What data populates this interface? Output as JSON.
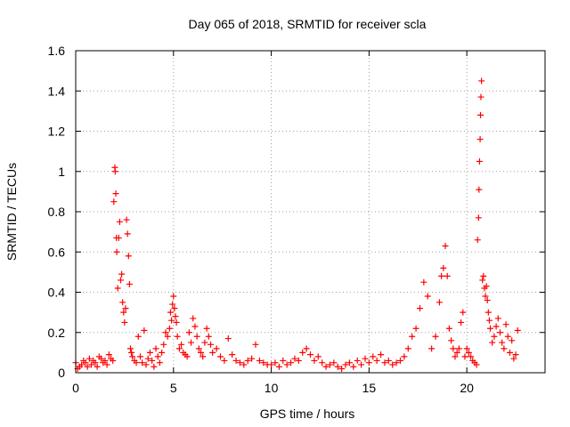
{
  "chart_data": {
    "type": "scatter",
    "title": "Day 065 of 2018, SRMTID for receiver scla",
    "xlabel": "GPS time / hours",
    "ylabel": "SRMTID / TECUs",
    "xlim": [
      0,
      24
    ],
    "ylim": [
      0,
      1.6
    ],
    "xticks": [
      0,
      5,
      10,
      15,
      20
    ],
    "xtick_labels": [
      "0",
      "5",
      "10",
      "15",
      "20"
    ],
    "yticks": [
      0,
      0.2,
      0.4,
      0.6,
      0.8,
      1,
      1.2,
      1.4,
      1.6
    ],
    "ytick_labels": [
      "0",
      "0.2",
      "0.4",
      "0.6",
      "0.8",
      "1",
      "1.2",
      "1.4",
      "1.6"
    ],
    "grid": true,
    "marker": "+",
    "color": "#ff0000",
    "series": [
      {
        "name": "SRMTID",
        "x": [
          0.0,
          0.1,
          0.2,
          0.3,
          0.4,
          0.5,
          0.6,
          0.7,
          0.8,
          0.9,
          1.0,
          1.1,
          1.2,
          1.3,
          1.4,
          1.5,
          1.6,
          1.7,
          1.8,
          1.9,
          1.95,
          2.0,
          2.02,
          2.05,
          2.08,
          2.1,
          2.15,
          2.2,
          2.25,
          2.3,
          2.35,
          2.4,
          2.45,
          2.5,
          2.55,
          2.6,
          2.65,
          2.7,
          2.75,
          2.8,
          2.85,
          2.9,
          3.0,
          3.1,
          3.2,
          3.3,
          3.4,
          3.5,
          3.6,
          3.7,
          3.8,
          3.9,
          4.0,
          4.1,
          4.2,
          4.3,
          4.4,
          4.5,
          4.6,
          4.7,
          4.8,
          4.85,
          4.9,
          4.95,
          5.0,
          5.05,
          5.1,
          5.15,
          5.2,
          5.3,
          5.4,
          5.5,
          5.6,
          5.7,
          5.8,
          5.9,
          6.0,
          6.1,
          6.2,
          6.3,
          6.4,
          6.5,
          6.6,
          6.7,
          6.8,
          6.9,
          7.0,
          7.2,
          7.4,
          7.6,
          7.8,
          8.0,
          8.2,
          8.4,
          8.6,
          8.8,
          9.0,
          9.2,
          9.4,
          9.6,
          9.8,
          10.0,
          10.2,
          10.4,
          10.6,
          10.8,
          11.0,
          11.2,
          11.4,
          11.6,
          11.8,
          12.0,
          12.2,
          12.4,
          12.6,
          12.8,
          13.0,
          13.2,
          13.4,
          13.6,
          13.8,
          14.0,
          14.2,
          14.4,
          14.6,
          14.8,
          15.0,
          15.2,
          15.4,
          15.6,
          15.8,
          16.0,
          16.2,
          16.4,
          16.6,
          16.8,
          17.0,
          17.2,
          17.4,
          17.6,
          17.8,
          18.0,
          18.2,
          18.4,
          18.6,
          18.7,
          18.8,
          18.9,
          19.0,
          19.1,
          19.2,
          19.3,
          19.4,
          19.5,
          19.6,
          19.7,
          19.8,
          19.9,
          20.0,
          20.1,
          20.2,
          20.3,
          20.4,
          20.5,
          20.55,
          20.6,
          20.62,
          20.65,
          20.68,
          20.7,
          20.72,
          20.75,
          20.8,
          20.85,
          20.9,
          20.95,
          21.0,
          21.05,
          21.1,
          21.15,
          21.2,
          21.3,
          21.4,
          21.5,
          21.6,
          21.7,
          21.8,
          21.9,
          22.0,
          22.1,
          22.2,
          22.3,
          22.4,
          22.5,
          22.6
        ],
        "y": [
          0.05,
          0.02,
          0.03,
          0.04,
          0.06,
          0.05,
          0.03,
          0.07,
          0.04,
          0.06,
          0.05,
          0.03,
          0.08,
          0.07,
          0.05,
          0.06,
          0.04,
          0.09,
          0.07,
          0.06,
          0.85,
          1.02,
          1.0,
          0.89,
          0.67,
          0.6,
          0.42,
          0.67,
          0.75,
          0.46,
          0.49,
          0.35,
          0.3,
          0.25,
          0.32,
          0.76,
          0.69,
          0.58,
          0.44,
          0.12,
          0.1,
          0.08,
          0.06,
          0.05,
          0.18,
          0.08,
          0.05,
          0.21,
          0.04,
          0.07,
          0.1,
          0.06,
          0.03,
          0.12,
          0.08,
          0.05,
          0.1,
          0.14,
          0.2,
          0.18,
          0.22,
          0.3,
          0.26,
          0.34,
          0.38,
          0.32,
          0.28,
          0.25,
          0.18,
          0.12,
          0.14,
          0.1,
          0.09,
          0.08,
          0.2,
          0.15,
          0.27,
          0.23,
          0.18,
          0.12,
          0.1,
          0.08,
          0.15,
          0.22,
          0.18,
          0.14,
          0.1,
          0.12,
          0.08,
          0.06,
          0.17,
          0.09,
          0.06,
          0.05,
          0.04,
          0.06,
          0.07,
          0.14,
          0.06,
          0.05,
          0.04,
          0.04,
          0.05,
          0.03,
          0.06,
          0.04,
          0.05,
          0.07,
          0.06,
          0.1,
          0.12,
          0.09,
          0.06,
          0.08,
          0.05,
          0.03,
          0.04,
          0.05,
          0.03,
          0.02,
          0.04,
          0.05,
          0.03,
          0.06,
          0.04,
          0.07,
          0.05,
          0.08,
          0.06,
          0.09,
          0.05,
          0.06,
          0.04,
          0.05,
          0.06,
          0.08,
          0.12,
          0.18,
          0.22,
          0.32,
          0.45,
          0.38,
          0.12,
          0.18,
          0.35,
          0.48,
          0.52,
          0.63,
          0.48,
          0.22,
          0.16,
          0.12,
          0.08,
          0.1,
          0.12,
          0.25,
          0.3,
          0.08,
          0.12,
          0.1,
          0.08,
          0.06,
          0.05,
          0.04,
          0.66,
          0.77,
          0.91,
          1.05,
          1.16,
          1.28,
          1.37,
          1.45,
          0.46,
          0.48,
          0.42,
          0.38,
          0.43,
          0.36,
          0.3,
          0.26,
          0.22,
          0.15,
          0.18,
          0.23,
          0.27,
          0.2,
          0.15,
          0.12,
          0.24,
          0.18,
          0.1,
          0.16,
          0.07,
          0.09,
          0.21
        ]
      }
    ]
  }
}
